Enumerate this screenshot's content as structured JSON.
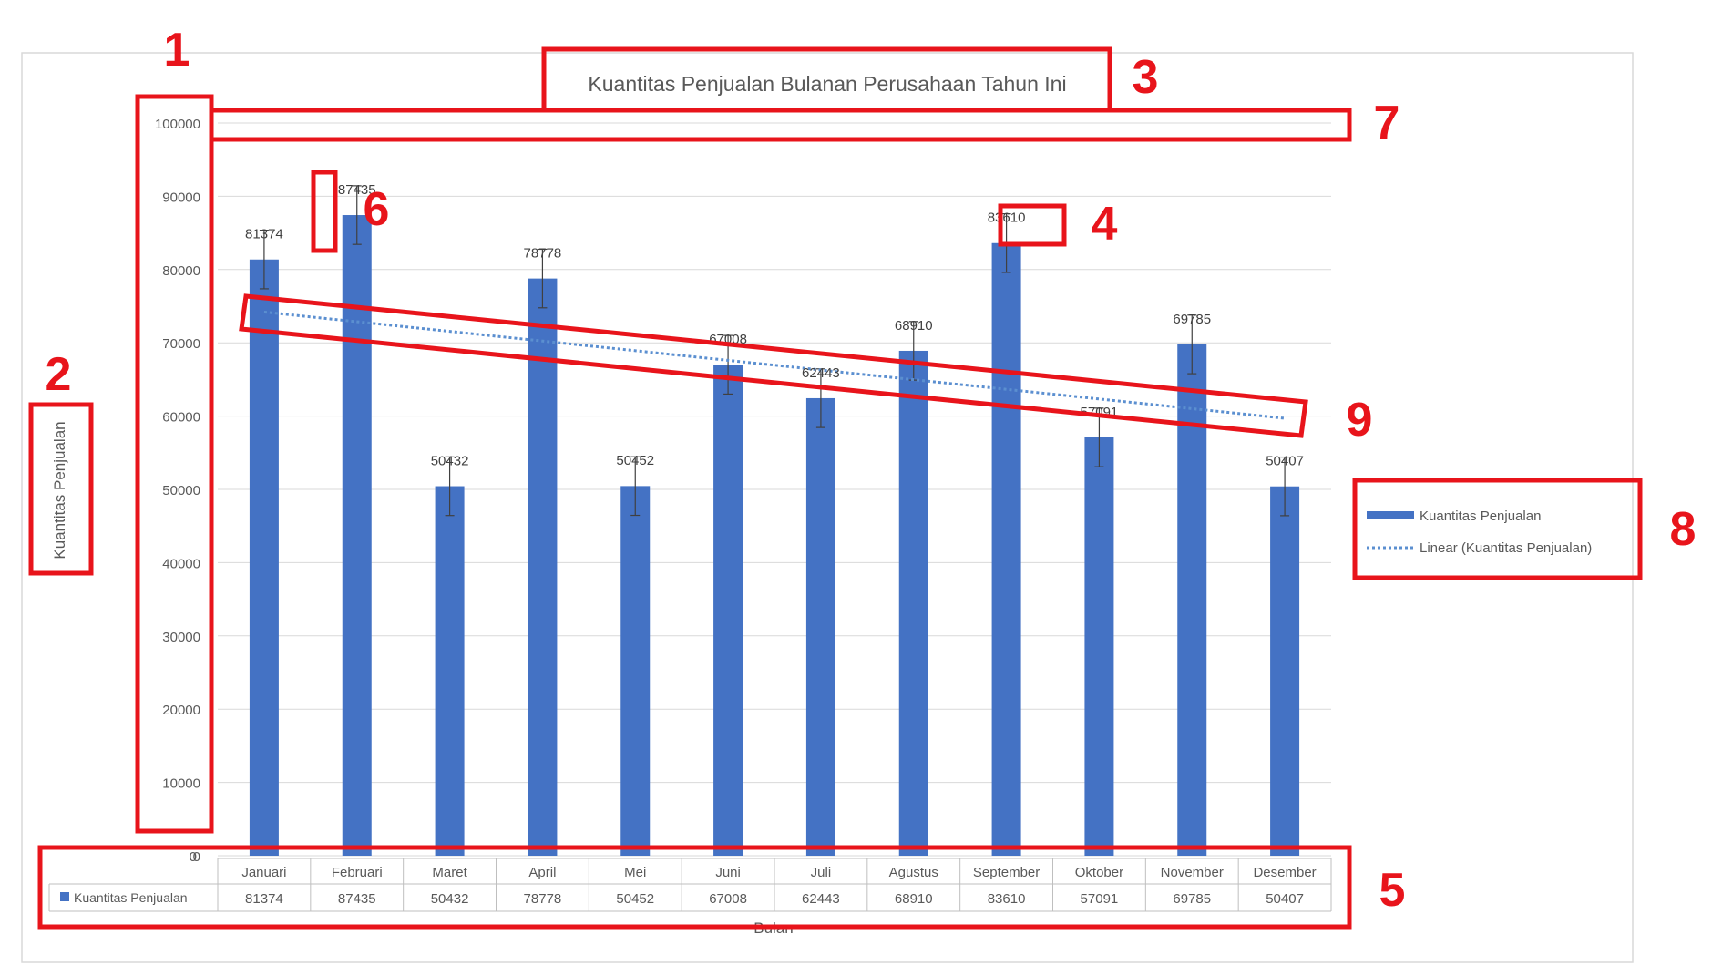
{
  "chart_data": {
    "type": "bar",
    "title": "Kuantitas Penjualan Bulanan Perusahaan Tahun Ini",
    "xlabel": "Bulan",
    "ylabel": "Kuantitas Penjualan",
    "ylim": [
      0,
      100000
    ],
    "yticks": [
      "0",
      "10000",
      "20000",
      "30000",
      "40000",
      "50000",
      "60000",
      "70000",
      "80000",
      "90000",
      "100000"
    ],
    "categories": [
      "Januari",
      "Februari",
      "Maret",
      "April",
      "Mei",
      "Juni",
      "Juli",
      "Agustus",
      "September",
      "Oktober",
      "November",
      "Desember"
    ],
    "series": [
      {
        "name": "Kuantitas Penjualan",
        "values": [
          81374,
          87435,
          50432,
          78778,
          50452,
          67008,
          62443,
          68910,
          83610,
          57091,
          69785,
          50407
        ],
        "color": "#4472C4",
        "error_bar": 4000
      }
    ],
    "trendline": {
      "name": "Linear (Kuantitas Penjualan)",
      "type": "linear",
      "start": 74200,
      "end": 59700,
      "color": "#5B8FD0"
    },
    "data_labels": [
      "81374",
      "87435",
      "50432",
      "78778",
      "50452",
      "67008",
      "62443",
      "68910",
      "83610",
      "57091",
      "69785",
      "50407"
    ],
    "legend": {
      "position": "right",
      "entries": [
        "Kuantitas Penjualan",
        "Linear (Kuantitas Penjualan)"
      ]
    },
    "data_table": {
      "row_label": "Kuantitas Penjualan",
      "values": [
        "81374",
        "87435",
        "50432",
        "78778",
        "50452",
        "67008",
        "62443",
        "68910",
        "83610",
        "57091",
        "69785",
        "50407"
      ]
    },
    "grid": true
  },
  "annotations": {
    "color": "#E8141B",
    "numbers": [
      "1",
      "2",
      "3",
      "4",
      "5",
      "6",
      "7",
      "8",
      "9"
    ]
  }
}
